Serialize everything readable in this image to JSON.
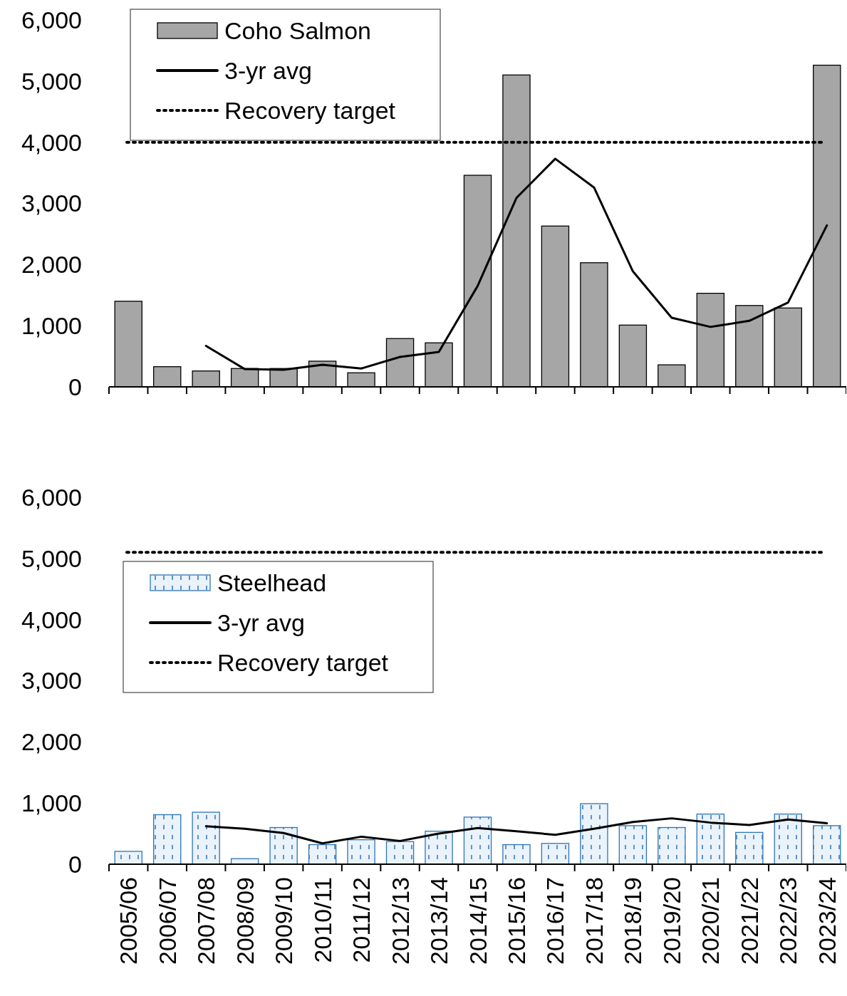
{
  "chart_data": [
    {
      "type": "bar",
      "categories": [
        null,
        null,
        null,
        null,
        null,
        null,
        null,
        null,
        null,
        null,
        null,
        null,
        null,
        null,
        null,
        null,
        null,
        null,
        null
      ],
      "series": [
        {
          "name": "Coho Salmon",
          "color": "#a6a6a6",
          "values": [
            1400,
            330,
            260,
            300,
            300,
            420,
            230,
            790,
            720,
            3460,
            5100,
            2630,
            2030,
            1010,
            360,
            1530,
            1330,
            1290,
            5260
          ]
        },
        {
          "name": "3-yr avg",
          "type": "line",
          "color": "#000000",
          "values": [
            null,
            null,
            670,
            290,
            280,
            360,
            300,
            490,
            570,
            1650,
            3090,
            3730,
            3260,
            1890,
            1130,
            980,
            1080,
            1380,
            2640
          ]
        }
      ],
      "ref_lines": [
        {
          "axis": "y",
          "value": 4000,
          "label": "Recovery target",
          "color": "#000000",
          "line_style": "dotted"
        }
      ],
      "ylim": [
        0,
        6000
      ],
      "yticks": [
        {
          "value": 0,
          "label": "0"
        },
        {
          "value": 1000,
          "label": "1,000"
        },
        {
          "value": 2000,
          "label": "2,000"
        },
        {
          "value": 3000,
          "label": "3,000"
        },
        {
          "value": 4000,
          "label": "4,000"
        },
        {
          "value": 5000,
          "label": "5,000"
        },
        {
          "value": 6000,
          "label": "6,000"
        }
      ],
      "tick_labels": "y",
      "legend": "top left"
    },
    {
      "type": "bar",
      "categories": [
        "2005/06",
        "2006/07",
        "2007/08",
        "2008/09",
        "2009/10",
        "2010/11",
        "2011/12",
        "2012/13",
        "2013/14",
        "2014/15",
        "2015/16",
        "2016/17",
        "2017/18",
        "2018/19",
        "2019/20",
        "2020/21",
        "2021/22",
        "2022/23",
        "2023/24"
      ],
      "series": [
        {
          "name": "Steelhead",
          "color": "#2e75b6",
          "values": [
            210,
            810,
            850,
            90,
            600,
            320,
            400,
            370,
            540,
            770,
            320,
            340,
            990,
            630,
            600,
            820,
            520,
            820,
            630
          ]
        },
        {
          "name": "3-yr avg",
          "type": "line",
          "color": "#000000",
          "values": [
            null,
            null,
            620,
            580,
            510,
            340,
            450,
            380,
            500,
            590,
            540,
            480,
            580,
            690,
            750,
            680,
            640,
            730,
            670
          ]
        }
      ],
      "ref_lines": [
        {
          "axis": "y",
          "value": 5100,
          "label": "Recovery target",
          "color": "#000000",
          "line_style": "dotted"
        }
      ],
      "ylim": [
        0,
        6000
      ],
      "yticks": [
        {
          "value": 0,
          "label": "0"
        },
        {
          "value": 1000,
          "label": "1,000"
        },
        {
          "value": 2000,
          "label": "2,000"
        },
        {
          "value": 3000,
          "label": "3,000"
        },
        {
          "value": 4000,
          "label": "4,000"
        },
        {
          "value": 5000,
          "label": "5,000"
        },
        {
          "value": 6000,
          "label": "6,000"
        }
      ],
      "legend": "left"
    }
  ]
}
